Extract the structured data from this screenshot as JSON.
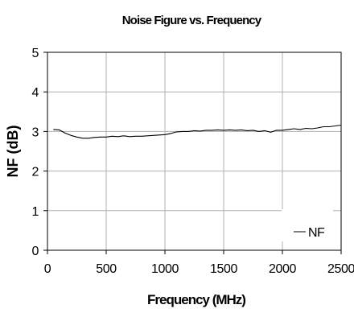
{
  "chart_data": {
    "type": "line",
    "title": "Noise Figure vs. Frequency",
    "xlabel": "Frequency (MHz)",
    "ylabel": "NF (dB)",
    "xlim": [
      0,
      2500
    ],
    "ylim": [
      0,
      5
    ],
    "x_ticks": [
      0,
      500,
      1000,
      1500,
      2000,
      2500
    ],
    "y_ticks": [
      0,
      1,
      2,
      3,
      4,
      5
    ],
    "x_tick_labels": [
      "0",
      "500",
      "1000",
      "1500",
      "2000",
      "2500"
    ],
    "y_tick_labels": [
      "0",
      "1",
      "2",
      "3",
      "4",
      "5"
    ],
    "grid": true,
    "legend_position": "bottom-right",
    "series": [
      {
        "name": "NF",
        "color": "#000000",
        "x": [
          50,
          100,
          150,
          200,
          250,
          300,
          350,
          400,
          450,
          500,
          550,
          600,
          650,
          700,
          750,
          800,
          850,
          900,
          950,
          1000,
          1050,
          1100,
          1150,
          1200,
          1250,
          1300,
          1350,
          1400,
          1450,
          1500,
          1550,
          1600,
          1650,
          1700,
          1750,
          1800,
          1850,
          1900,
          1950,
          2000,
          2050,
          2100,
          2150,
          2200,
          2250,
          2300,
          2350,
          2400,
          2450,
          2500
        ],
        "y": [
          3.05,
          3.04,
          2.96,
          2.9,
          2.86,
          2.83,
          2.83,
          2.85,
          2.86,
          2.86,
          2.88,
          2.87,
          2.89,
          2.87,
          2.88,
          2.88,
          2.89,
          2.9,
          2.91,
          2.92,
          2.95,
          2.99,
          3.0,
          3.0,
          3.02,
          3.01,
          3.03,
          3.03,
          3.04,
          3.03,
          3.04,
          3.03,
          3.04,
          3.02,
          3.03,
          3.0,
          3.02,
          2.98,
          3.03,
          3.03,
          3.05,
          3.07,
          3.05,
          3.08,
          3.07,
          3.09,
          3.12,
          3.12,
          3.14,
          3.16
        ]
      }
    ]
  }
}
